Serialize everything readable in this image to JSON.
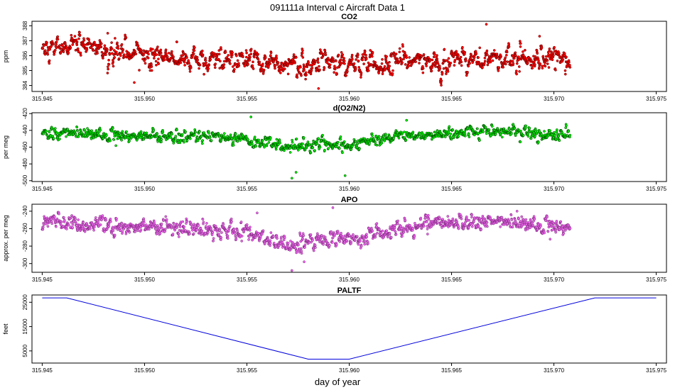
{
  "title": "091111a   Interval c Aircraft Data 1",
  "xlabel": "day of year",
  "x_ticks": [
    "315.945",
    "315.950",
    "315.955",
    "315.960",
    "315.965",
    "315.970",
    "315.975"
  ],
  "chart_data": [
    {
      "type": "scatter",
      "title": "CO2",
      "ylabel": "ppm",
      "xlim": [
        315.9445,
        315.9755
      ],
      "ylim": [
        383.6,
        388.3
      ],
      "y_ticks": [
        "384",
        "385",
        "386",
        "387",
        "388"
      ],
      "color": "#ff0000",
      "outline_color": "#660000",
      "x_range": [
        315.945,
        315.9708
      ],
      "trend": [
        [
          315.945,
          386.6
        ],
        [
          315.947,
          386.6
        ],
        [
          315.949,
          386.2
        ],
        [
          315.9505,
          386.0
        ],
        [
          315.952,
          385.7
        ],
        [
          315.955,
          385.6
        ],
        [
          315.958,
          385.3
        ],
        [
          315.961,
          385.5
        ],
        [
          315.964,
          385.6
        ],
        [
          315.967,
          385.7
        ],
        [
          315.9708,
          385.8
        ]
      ],
      "noise": 0.45,
      "outliers": [
        [
          315.9667,
          388.1
        ],
        [
          315.9585,
          383.8
        ],
        [
          315.9495,
          384.2
        ],
        [
          315.9482,
          387.5
        ],
        [
          315.9693,
          387.3
        ]
      ]
    },
    {
      "type": "scatter",
      "title": "d(O2/N2)",
      "ylabel": "per meg",
      "xlim": [
        315.9445,
        315.9755
      ],
      "ylim": [
        -501,
        -419
      ],
      "y_ticks": [
        "-500",
        "-480",
        "-460",
        "-440",
        "-420"
      ],
      "color": "#00ee00",
      "outline_color": "#004400",
      "x_range": [
        315.945,
        315.9708
      ],
      "trend": [
        [
          315.945,
          -443
        ],
        [
          315.949,
          -446
        ],
        [
          315.9525,
          -447
        ],
        [
          315.955,
          -452
        ],
        [
          315.957,
          -460
        ],
        [
          315.959,
          -458
        ],
        [
          315.9605,
          -455
        ],
        [
          315.962,
          -448
        ],
        [
          315.964,
          -443
        ],
        [
          315.967,
          -441
        ],
        [
          315.9708,
          -446
        ]
      ],
      "noise": 4.5,
      "outliers": [
        [
          315.9572,
          -497
        ],
        [
          315.9574,
          -490
        ],
        [
          315.9552,
          -424
        ],
        [
          315.9598,
          -494
        ],
        [
          315.9628,
          -428
        ]
      ]
    },
    {
      "type": "scatter",
      "title": "APO",
      "ylabel": "approx. per meg",
      "xlim": [
        315.9445,
        315.9755
      ],
      "ylim": [
        -310,
        -232
      ],
      "y_ticks": [
        "-300",
        "-280",
        "-260",
        "-240"
      ],
      "color": "#ee66ee",
      "outline_color": "#7a2a7a",
      "x_range": [
        315.945,
        315.9708
      ],
      "trend": [
        [
          315.945,
          -252
        ],
        [
          315.949,
          -257
        ],
        [
          315.9525,
          -260
        ],
        [
          315.955,
          -265
        ],
        [
          315.957,
          -278
        ],
        [
          315.959,
          -273
        ],
        [
          315.9605,
          -270
        ],
        [
          315.962,
          -262
        ],
        [
          315.964,
          -254
        ],
        [
          315.967,
          -253
        ],
        [
          315.9708,
          -258
        ]
      ],
      "noise": 5.5,
      "outliers": [
        [
          315.9572,
          -308
        ],
        [
          315.9592,
          -236
        ],
        [
          315.9578,
          -298
        ],
        [
          315.9555,
          -242
        ],
        [
          315.9682,
          -240
        ]
      ]
    },
    {
      "type": "line",
      "title": "PALTF",
      "ylabel": "feet",
      "xlim": [
        315.9445,
        315.9755
      ],
      "ylim": [
        0,
        28000
      ],
      "y_ticks": [
        "5000",
        "15000",
        "25000"
      ],
      "color": "#0000dd",
      "x": [
        315.945,
        315.9462,
        315.958,
        315.96,
        315.972,
        315.975
      ],
      "y": [
        26800,
        26800,
        1600,
        1600,
        26800,
        26800
      ]
    }
  ]
}
